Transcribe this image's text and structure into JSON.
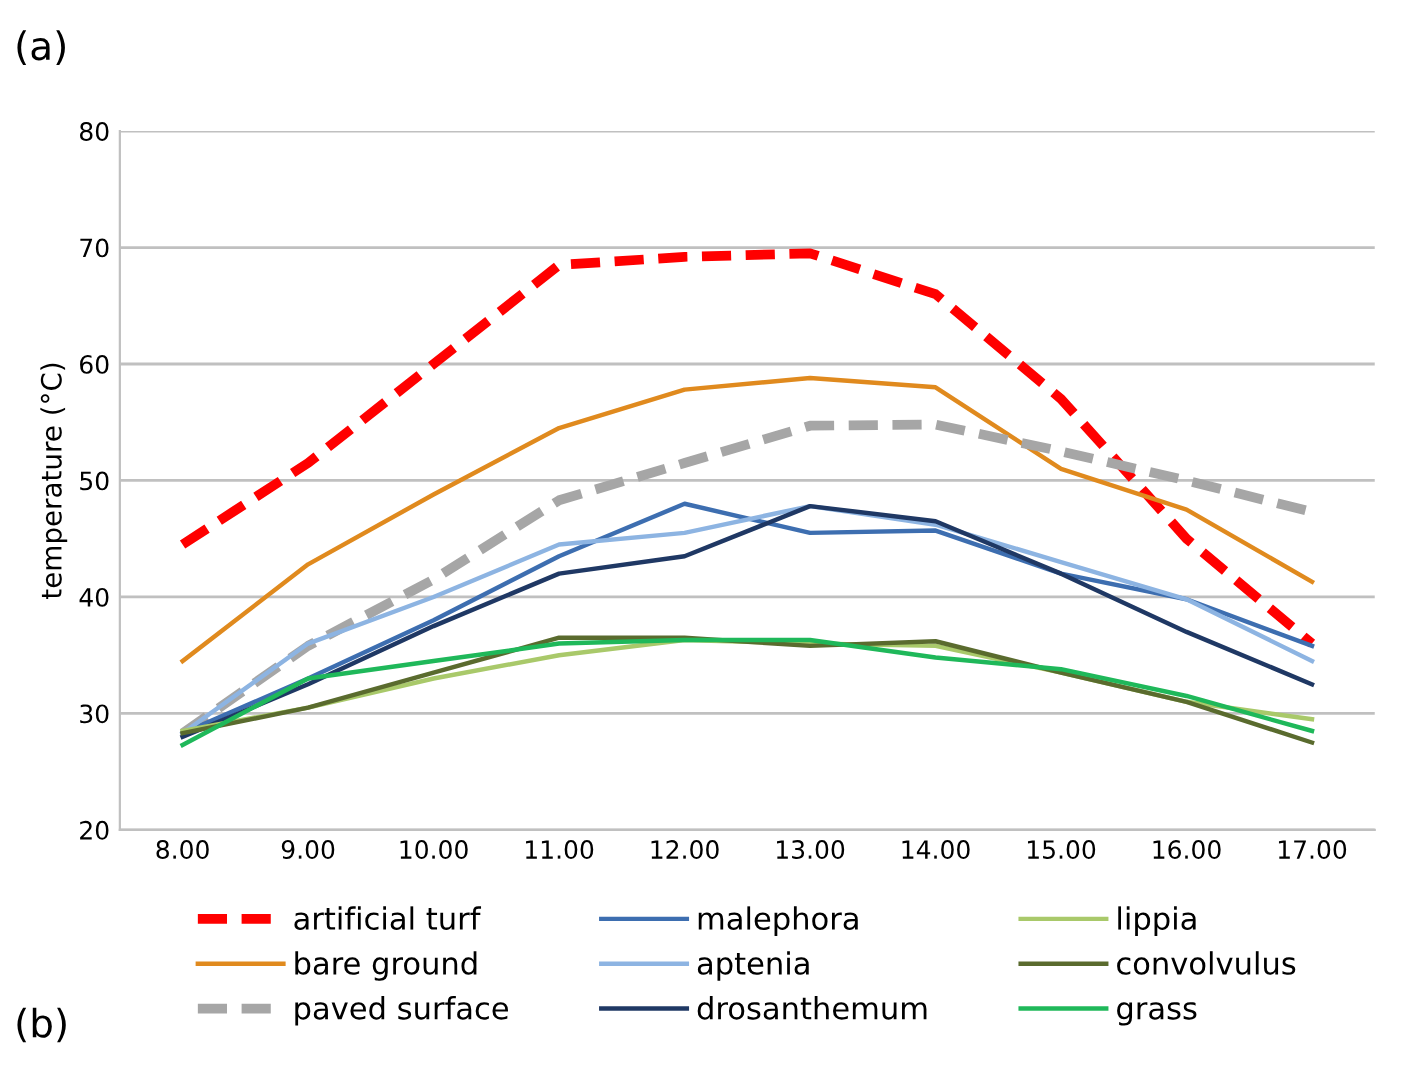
{
  "chart_data": {
    "type": "line",
    "ylabel": "temperature (°C)",
    "categories": [
      "8.00",
      "9.00",
      "10.00",
      "11.00",
      "12.00",
      "13.00",
      "14.00",
      "15.00",
      "16.00",
      "17.00"
    ],
    "ylim": [
      20,
      80
    ],
    "yticks": [
      20,
      30,
      40,
      50,
      60,
      70,
      80
    ],
    "grid": "y",
    "legend": "bottom",
    "marker": "none",
    "annotations": [
      "(a)",
      "(b)"
    ],
    "series": [
      {
        "name": "artificial turf",
        "color": "#ff0000",
        "line_style": "dashed",
        "values": [
          44.5,
          51.5,
          60,
          68.5,
          69.2,
          69.5,
          66,
          57,
          45,
          36
        ]
      },
      {
        "name": "bare ground",
        "color": "#e08a1e",
        "values": [
          34.5,
          42.8,
          48.8,
          54.5,
          57.8,
          58.8,
          58,
          51,
          47.5,
          41.3
        ]
      },
      {
        "name": "paved surface",
        "color": "#a6a6a6",
        "line_style": "dashed",
        "values": [
          28.3,
          35.8,
          41.5,
          48.3,
          51.5,
          54.7,
          54.8,
          52.5,
          50,
          47.3
        ]
      },
      {
        "name": "malephora",
        "color": "#3d6eb0",
        "values": [
          28.3,
          33,
          38,
          43.5,
          48,
          45.5,
          45.7,
          42,
          39.8,
          35.8
        ]
      },
      {
        "name": "aptenia",
        "color": "#8db4e2",
        "values": [
          28.3,
          36,
          40,
          44.5,
          45.5,
          47.8,
          46.2,
          43,
          39.8,
          34.5
        ]
      },
      {
        "name": "drosanthemum",
        "color": "#1f3864",
        "values": [
          28,
          32.5,
          37.5,
          42,
          43.5,
          47.8,
          46.5,
          42,
          37,
          32.5
        ]
      },
      {
        "name": "lippia",
        "color": "#a9c96a",
        "values": [
          28.5,
          30.5,
          33,
          35,
          36.3,
          36,
          35.8,
          33.5,
          31,
          29.5
        ]
      },
      {
        "name": "convolvulus",
        "color": "#5a6b2e",
        "values": [
          28.3,
          30.5,
          33.5,
          36.5,
          36.5,
          35.8,
          36.2,
          33.5,
          31,
          27.5
        ]
      },
      {
        "name": "grass",
        "color": "#1fb85a",
        "values": [
          27.3,
          33,
          34.5,
          36,
          36.3,
          36.3,
          34.8,
          33.8,
          31.5,
          28.5
        ]
      }
    ]
  }
}
